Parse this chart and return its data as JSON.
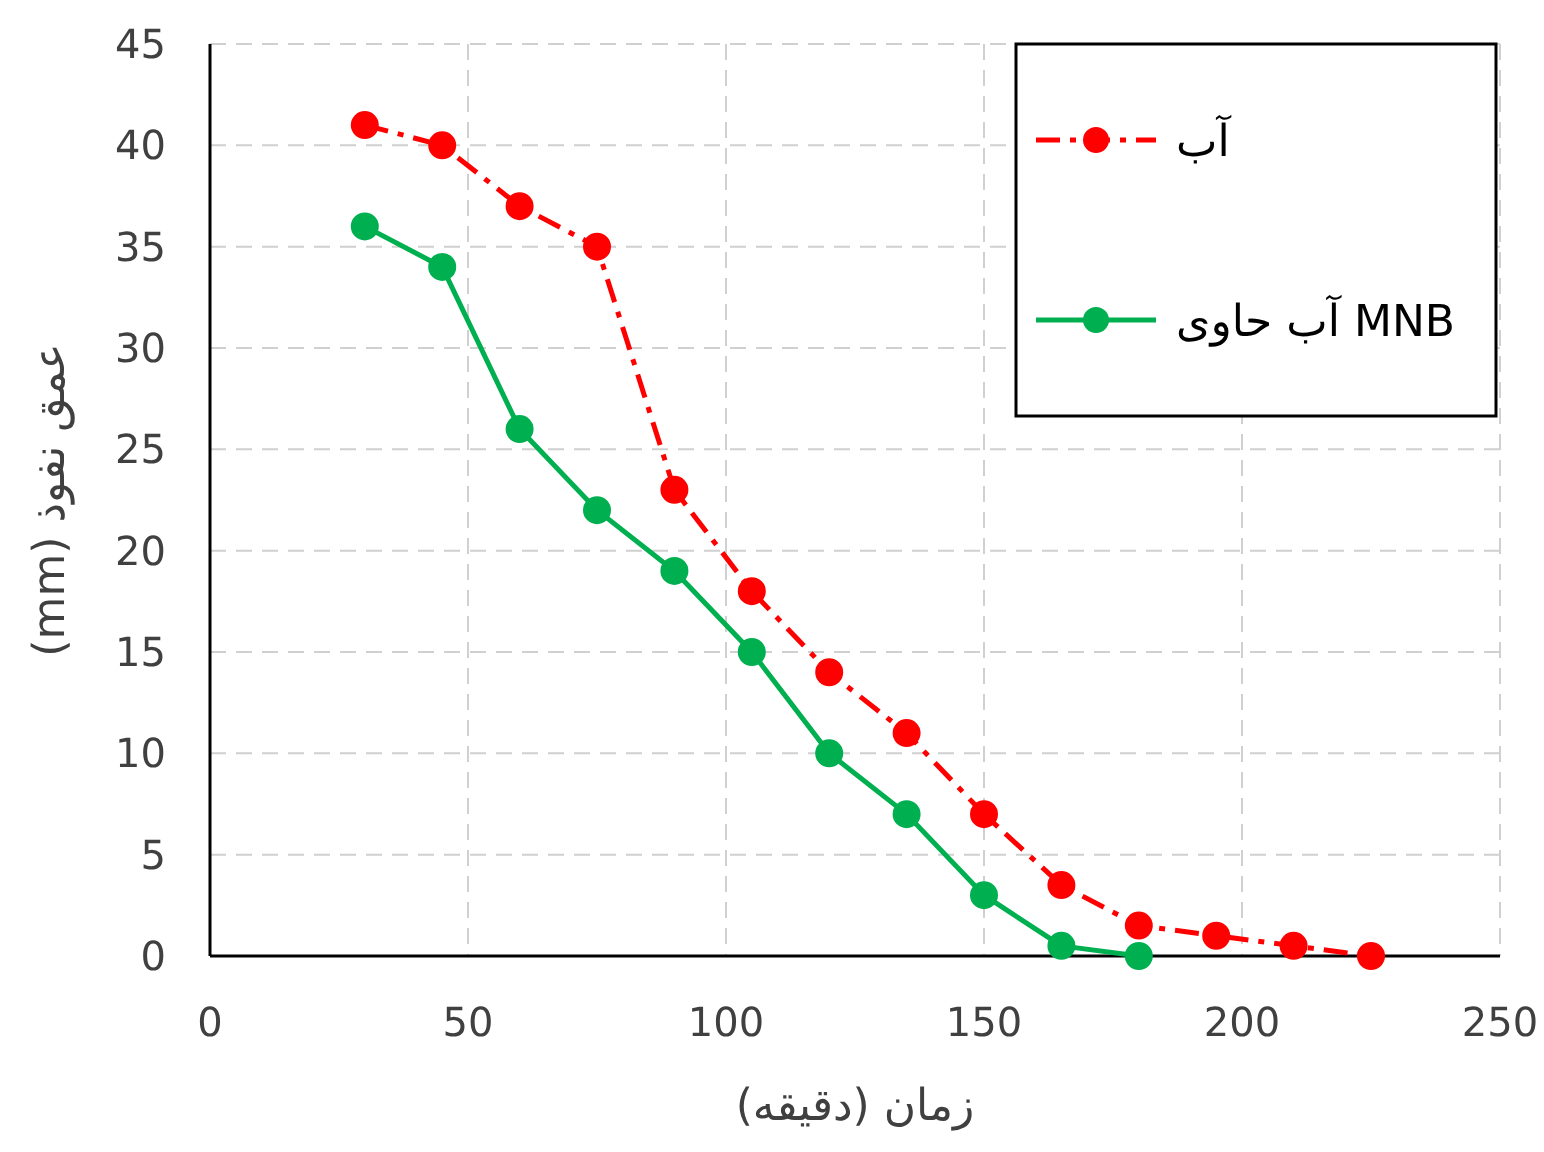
{
  "chart_data": {
    "type": "line",
    "xlabel": "زمان (دقیقه)",
    "ylabel": "عمق نفوذ (mm)",
    "xlim": [
      0,
      250
    ],
    "xticks": [
      0,
      50,
      100,
      150,
      200,
      250
    ],
    "ylim": [
      0,
      45
    ],
    "yticks": [
      0,
      5,
      10,
      15,
      20,
      25,
      30,
      35,
      40,
      45
    ],
    "grid": true,
    "legend": "top right",
    "marker": "circle",
    "series": [
      {
        "name": "آب",
        "color": "#ff0000",
        "line_style": "dashed",
        "x": [
          30,
          45,
          60,
          75,
          90,
          105,
          120,
          135,
          150,
          165,
          180,
          195,
          210,
          225
        ],
        "values": [
          41,
          40,
          37,
          35,
          23,
          18,
          14,
          11,
          7,
          3.5,
          1.5,
          1,
          0.5,
          0
        ]
      },
      {
        "name": "آب حاوی MNB",
        "color": "#00b050",
        "line_style": "solid",
        "x": [
          30,
          45,
          60,
          75,
          90,
          105,
          120,
          135,
          150,
          165,
          180
        ],
        "values": [
          36,
          34,
          26,
          22,
          19,
          15,
          10,
          7,
          3,
          0.5,
          0
        ]
      }
    ]
  }
}
